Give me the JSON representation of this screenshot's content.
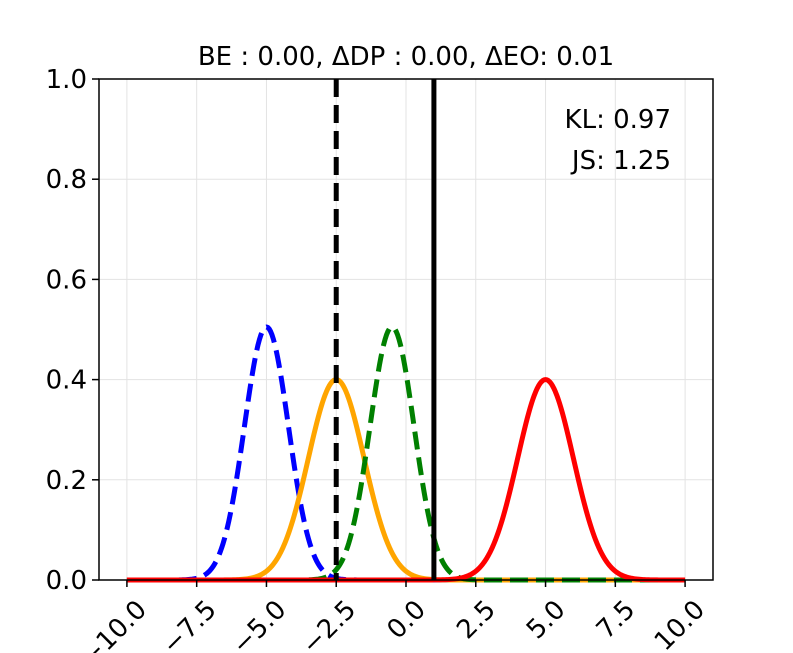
{
  "chart_data": {
    "type": "line",
    "title": "BE : 0.00, ΔDP : 0.00, ΔEO: 0.01",
    "xlabel": "",
    "ylabel": "",
    "xlim": [
      -11.0,
      11.0
    ],
    "ylim": [
      0.0,
      1.0
    ],
    "grid": true,
    "x_ticks": [
      -10.0,
      -7.5,
      -5.0,
      -2.5,
      0.0,
      2.5,
      5.0,
      7.5,
      10.0
    ],
    "x_tick_labels": [
      "−10.0",
      "−7.5",
      "−5.0",
      "−2.5",
      "0.0",
      "2.5",
      "5.0",
      "7.5",
      "10.0"
    ],
    "y_ticks": [
      0.0,
      0.2,
      0.4,
      0.6,
      0.8,
      1.0
    ],
    "y_tick_labels": [
      "0.0",
      "0.2",
      "0.4",
      "0.6",
      "0.8",
      "1.0"
    ],
    "annotations": [
      "KL: 0.97",
      "JS: 1.25"
    ],
    "series": [
      {
        "style": "dashed",
        "color": "#0000ff",
        "distribution": "normal",
        "mean": -5.0,
        "std": 0.79,
        "peak": 0.505
      },
      {
        "style": "solid",
        "color": "#ffa500",
        "distribution": "normal",
        "mean": -2.5,
        "std": 1.0,
        "peak": 0.4
      },
      {
        "style": "dashed",
        "color": "#008000",
        "distribution": "normal",
        "mean": -0.5,
        "std": 0.79,
        "peak": 0.505
      },
      {
        "style": "solid",
        "color": "#ff0000",
        "distribution": "normal",
        "mean": 5.0,
        "std": 1.0,
        "peak": 0.4
      }
    ],
    "vertical_lines": [
      {
        "x": -2.5,
        "style": "dashed",
        "color": "#000000"
      },
      {
        "x": 1.0,
        "style": "solid",
        "color": "#000000"
      }
    ],
    "x_range": [
      -10.0,
      10.0
    ]
  }
}
